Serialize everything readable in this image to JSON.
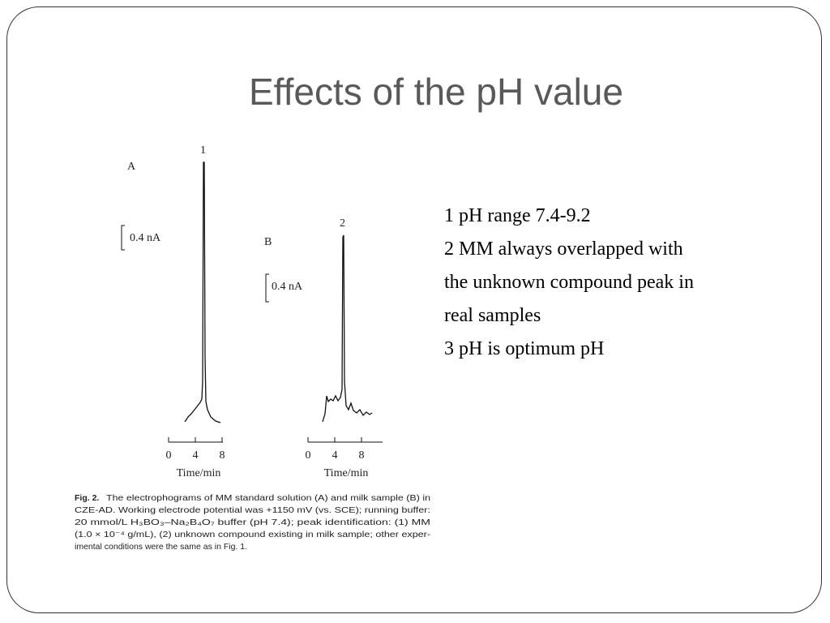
{
  "slide": {
    "title": "Effects of the pH value",
    "points": [
      "1 pH range 7.4-9.2",
      "2 MM always overlapped with the unknown compound peak in real samples",
      "3 pH is optimum pH"
    ],
    "figure": {
      "panel_a": {
        "label": "A",
        "peak_label": "1",
        "scale": "0.4 nA",
        "x_ticks": [
          "0",
          "4",
          "8"
        ],
        "x_label": "Time/min"
      },
      "panel_b": {
        "label": "B",
        "peak_label": "2",
        "scale": "0.4 nA",
        "x_ticks": [
          "0",
          "4",
          "8"
        ],
        "x_label": "Time/min"
      },
      "caption": {
        "label": "Fig. 2.",
        "lines": [
          "The electrophograms of MM standard solution (A) and milk sample (B) in",
          "CZE-AD. Working electrode potential was +1150 mV (vs. SCE); running buffer:",
          "20 mmol/L H₃BO₃–Na₂B₄O₇ buffer (pH 7.4); peak identification: (1) MM",
          "(1.0 × 10⁻⁴ g/mL), (2) unknown compound existing in milk sample; other exper-",
          "imental conditions were the same as in Fig. 1."
        ]
      }
    }
  }
}
